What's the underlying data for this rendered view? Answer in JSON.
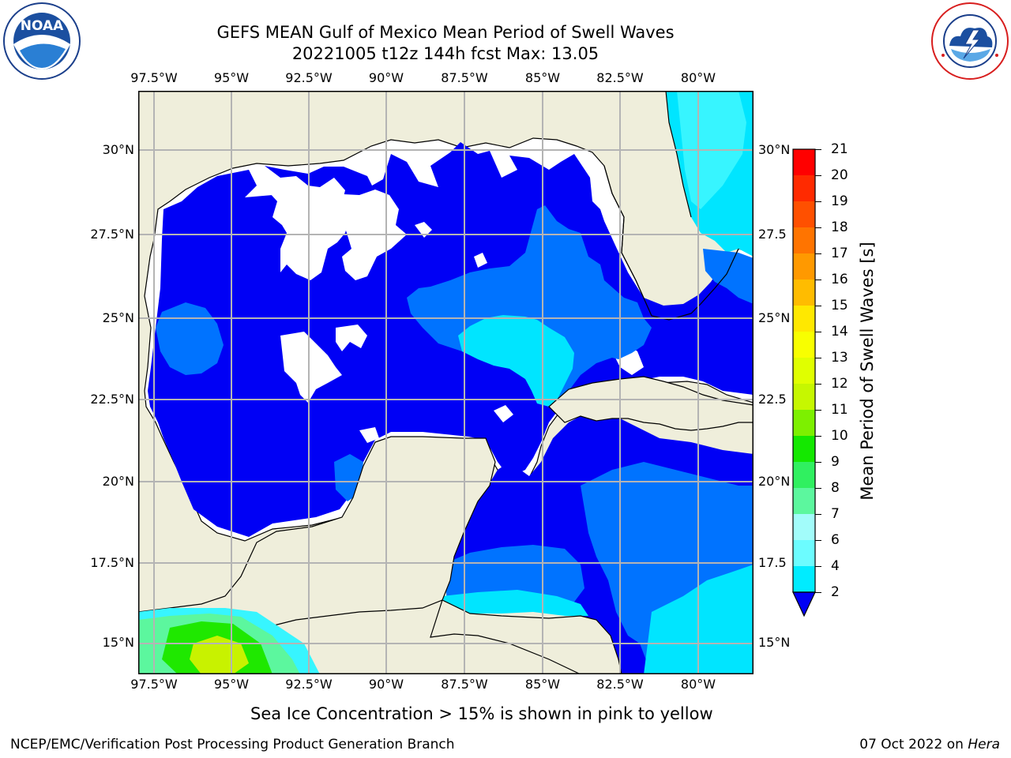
{
  "title": {
    "line1": "GEFS MEAN Gulf of Mexico Mean Period of Swell Waves",
    "line2": "20221005 t12z 144h fcst   Max: 13.05"
  },
  "logos": {
    "noaa": {
      "icon": "noaa-logo",
      "text": "NOAA",
      "ring": "NATIONAL OCEANIC AND ATMOSPHERIC ADMINISTRATION · U.S. DEPARTMENT OF COMMERCE"
    },
    "nws": {
      "icon": "nws-logo",
      "ring": "NATIONAL WEATHER SERVICE"
    }
  },
  "map": {
    "lon_ticks": [
      "97.5°W",
      "95°W",
      "92.5°W",
      "90°W",
      "87.5°W",
      "85°W",
      "82.5°W",
      "80°W"
    ],
    "lat_ticks_left": [
      "30°N",
      "27.5°N",
      "25°N",
      "22.5°N",
      "20°N",
      "17.5°N",
      "15°N"
    ],
    "lat_ticks_right": [
      "30°N",
      "27.5",
      "25°N",
      "22.5",
      "20°N",
      "17.5",
      "15°N"
    ],
    "colors": {
      "land": "#efeedb",
      "deep_blue": "#0000f5",
      "blue_2_4": "#0073ff",
      "cyan_4_6": "#00e5ff",
      "cyan_6_8": "#37f5ff",
      "green_10_11": "#1fe800",
      "yellow_green": "#c8f200",
      "gridline": "#b4b4b4"
    }
  },
  "colorbar": {
    "label": "Mean Period of Swell Waves [s]",
    "ticks": [
      "21",
      "20",
      "19",
      "18",
      "17",
      "16",
      "15",
      "14",
      "13",
      "12",
      "11",
      "10",
      "9",
      "8",
      "7",
      "6",
      "4",
      "2"
    ],
    "colors": [
      "#ff0000",
      "#ff2a00",
      "#ff5000",
      "#ff7400",
      "#ff9900",
      "#ffbc00",
      "#ffe800",
      "#f8ff00",
      "#e0ff00",
      "#c6f700",
      "#7df000",
      "#14e800",
      "#30f060",
      "#5cf79e",
      "#a2fcfa",
      "#6cfcff",
      "#00ecff",
      "#0a6cff",
      "#0000f5"
    ]
  },
  "note": "Sea Ice Concentration > 15% is shown in pink to yellow",
  "footer": {
    "left": "NCEP/EMC/Verification Post Processing Product Generation Branch",
    "right_prefix": "07 Oct 2022 on ",
    "right_host": "Hera"
  }
}
